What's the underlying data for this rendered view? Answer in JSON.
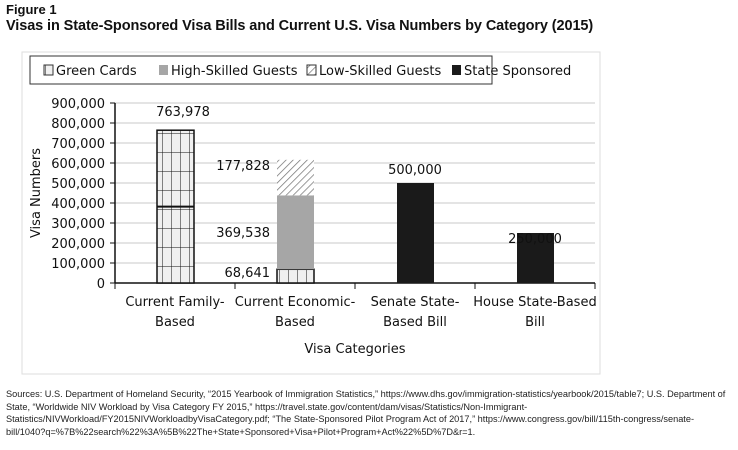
{
  "figure_label": "Figure 1",
  "title": "Visas in State-Sponsored Visa Bills and Current U.S. Visa Numbers by Category (2015)",
  "sources": "Sources: U.S. Department of Homeland Security, “2015 Yearbook of Immigration Statistics,” https://www.dhs.gov/immigration-statistics/yearbook/2015/table7; U.S. Department of State, “Worldwide NIV Workload by Visa Category FY 2015,” https://travel.state.gov/content/dam/visas/Statistics/Non-Immigrant-Statistics/NIVWorkload/FY2015NIVWorkloadbyVisaCategory.pdf; “The State-Sponsored Pilot Program Act of 2017,” https://www.congress.gov/bill/115th-congress/senate-bill/1040?q=%7B%22search%22%3A%5B%22The+State+Sponsored+Visa+Pilot+Program+Act%22%5D%7D&r=1.",
  "chart_data": {
    "type": "bar",
    "stacked": true,
    "xlabel": "Visa Categories",
    "ylabel": "Visa Numbers",
    "ylim": [
      0,
      900000
    ],
    "yticks": [
      "0",
      "100,000",
      "200,000",
      "300,000",
      "400,000",
      "500,000",
      "600,000",
      "700,000",
      "800,000",
      "900,000"
    ],
    "grid": true,
    "legend_position": "top",
    "categories": [
      [
        "Current Family-",
        "Based"
      ],
      [
        "Current Economic-",
        "Based"
      ],
      [
        "Senate State-",
        "Based Bill"
      ],
      [
        "House State-Based",
        "Bill"
      ]
    ],
    "series": [
      {
        "name": "Green Cards",
        "values": [
          763978,
          68641,
          0,
          0
        ],
        "pattern": "grid"
      },
      {
        "name": "High-Skilled Guests",
        "values": [
          0,
          369538,
          0,
          0
        ],
        "color": "#a6a6a6"
      },
      {
        "name": "Low-Skilled Guests",
        "values": [
          0,
          177828,
          0,
          0
        ],
        "pattern": "diagonal-hatch"
      },
      {
        "name": "State Sponsored",
        "values": [
          0,
          0,
          500000,
          250000
        ],
        "color": "#1a1a1a"
      }
    ],
    "data_labels": [
      "763,978",
      "68,641",
      "369,538",
      "177,828",
      "500,000",
      "250,000"
    ]
  }
}
